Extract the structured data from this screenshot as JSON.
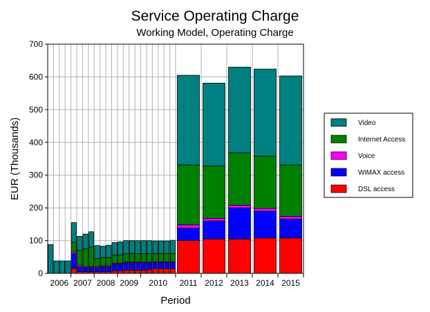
{
  "chart_data": {
    "type": "bar",
    "stacked": true,
    "title": "Service Operating Charge",
    "subtitle": "Working Model, Operating Charge",
    "xlabel": "Period",
    "ylabel": "EUR (Thousands)",
    "ylim": [
      0,
      700
    ],
    "yticks": [
      "0",
      "100",
      "200",
      "300",
      "400",
      "500",
      "600",
      "700"
    ],
    "grid": true,
    "legend_position": "right",
    "year_labels": [
      "2006",
      "2007",
      "2008",
      "2009",
      "2010",
      "2011",
      "2012",
      "2013",
      "2014",
      "2015"
    ],
    "series": [
      {
        "name": "DSL access",
        "color": "#ff0000",
        "values": [
          0,
          0,
          0,
          0,
          15,
          5,
          5,
          5,
          5,
          5,
          5,
          8,
          8,
          10,
          10,
          10,
          10,
          12,
          15,
          15,
          15,
          15,
          100,
          105,
          105,
          108,
          108
        ]
      },
      {
        "name": "WiMAX access",
        "color": "#0000ff",
        "values": [
          0,
          0,
          0,
          0,
          45,
          15,
          12,
          12,
          12,
          15,
          15,
          20,
          20,
          22,
          22,
          22,
          22,
          20,
          18,
          18,
          18,
          18,
          38,
          55,
          95,
          82,
          58
        ]
      },
      {
        "name": "Voice",
        "color": "#ff00ff",
        "values": [
          0,
          0,
          0,
          0,
          5,
          5,
          3,
          3,
          3,
          3,
          3,
          3,
          3,
          3,
          3,
          3,
          3,
          3,
          3,
          3,
          3,
          3,
          10,
          8,
          8,
          8,
          8
        ]
      },
      {
        "name": "Internet Access",
        "color": "#008000",
        "values": [
          0,
          0,
          0,
          0,
          30,
          45,
          55,
          60,
          25,
          25,
          25,
          25,
          25,
          25,
          25,
          25,
          25,
          25,
          25,
          25,
          25,
          25,
          183,
          160,
          160,
          160,
          157
        ]
      },
      {
        "name": "Video",
        "color": "#008080",
        "values": [
          88,
          38,
          38,
          38,
          60,
          43,
          45,
          47,
          40,
          35,
          38,
          38,
          40,
          40,
          40,
          40,
          40,
          40,
          38,
          38,
          38,
          40,
          274,
          253,
          262,
          266,
          272
        ]
      }
    ]
  }
}
